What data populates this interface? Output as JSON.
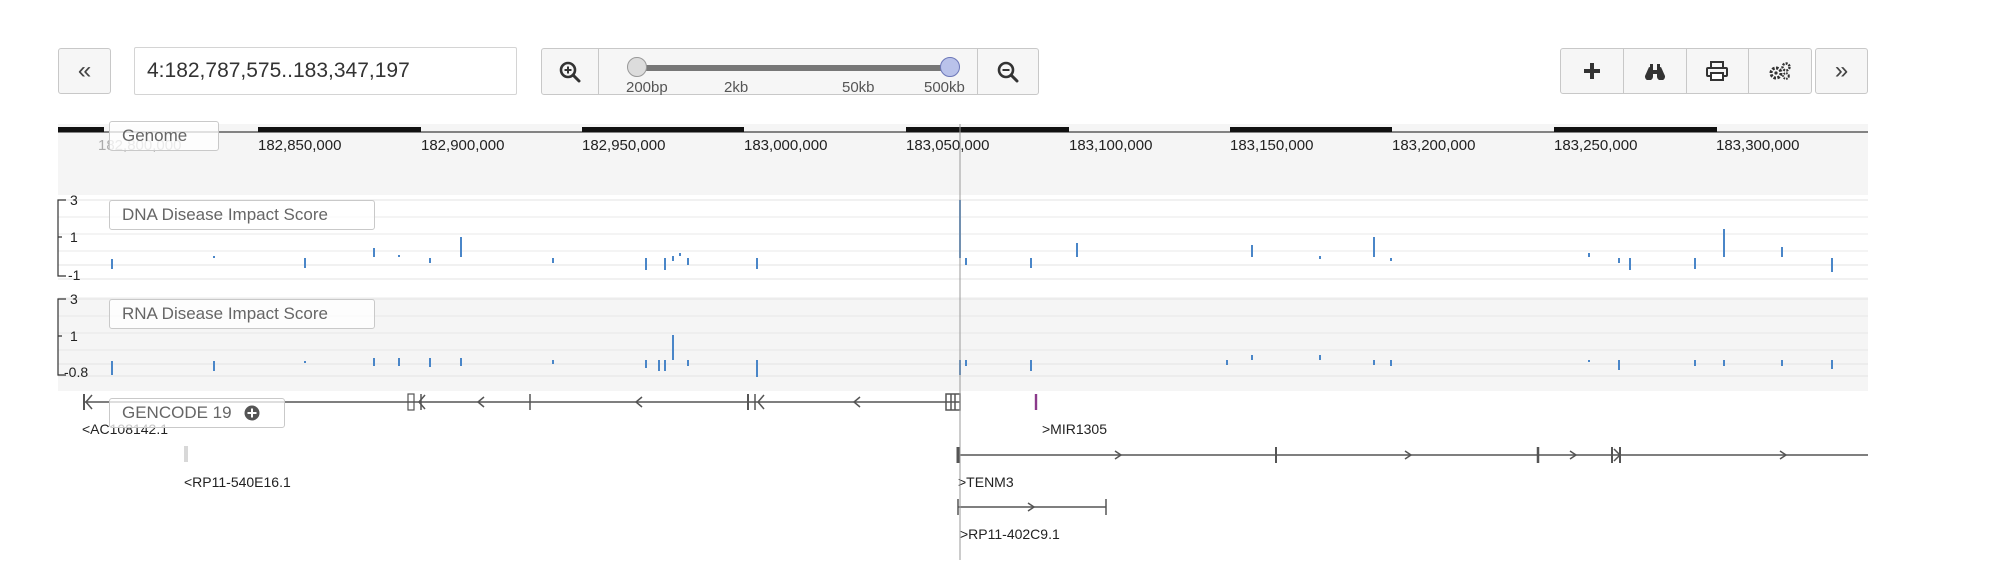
{
  "navigation": {
    "back_label": "«",
    "forward_label": "»"
  },
  "location": {
    "value": "4:182,787,575..183,347,197"
  },
  "zoom": {
    "labels": [
      "200bp",
      "2kb",
      "50kb",
      "500kb"
    ],
    "slider_level": 1.0
  },
  "toolbar": {
    "icons": [
      "plus-icon",
      "binoculars-icon",
      "print-icon",
      "gears-icon"
    ]
  },
  "ruler": {
    "labels": [
      "182,800,000",
      "182,850,000",
      "182,900,000",
      "182,950,000",
      "183,000,000",
      "183,050,000",
      "183,100,000",
      "183,150,000",
      "183,200,000",
      "183,250,000",
      "183,300,000"
    ]
  },
  "tracks": {
    "genome": {
      "label": "Genome"
    },
    "dna": {
      "label": "DNA Disease Impact Score",
      "axis": [
        "3",
        "1",
        "-1"
      ],
      "color": "#4a86c8"
    },
    "rna": {
      "label": "RNA Disease Impact Score",
      "axis": [
        "3",
        "1",
        "-0.8"
      ],
      "color": "#4a86c8"
    },
    "gencode": {
      "label": "GENCODE 19",
      "genes": [
        {
          "name": "<AC108142.1",
          "color": "#555555"
        },
        {
          "name": ">MIR1305",
          "color": "#8b3a8b"
        },
        {
          "name": "<RP11-540E16.1",
          "color": "#555555"
        },
        {
          "name": ">TENM3",
          "color": "#555555"
        },
        {
          "name": ">RP11-402C9.1",
          "color": "#555555"
        }
      ]
    }
  },
  "cursor": {
    "position": "183,050,000"
  }
}
